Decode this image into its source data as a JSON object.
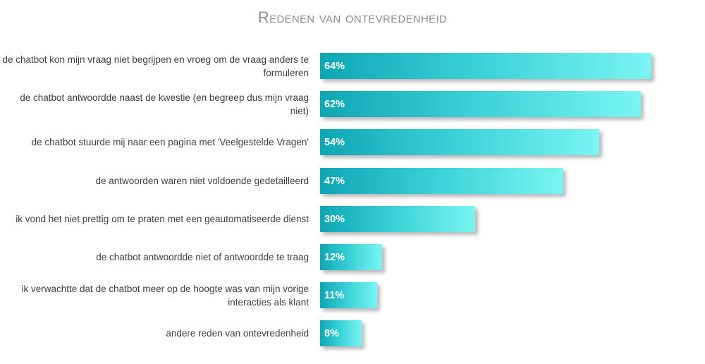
{
  "chart_data": {
    "type": "bar",
    "orientation": "horizontal",
    "title": "Redenen van ontevredenheid",
    "categories": [
      "de chatbot kon mijn vraag niet begrijpen en vroeg om de vraag anders te formuleren",
      "de chatbot antwoordde naast de kwestie (en begreep dus mijn vraag niet)",
      "de chatbot stuurde mij naar een pagina met 'Veelgestelde Vragen'",
      "de antwoorden waren niet voldoende gedetailleerd",
      "ik vond het niet prettig om te praten met een geautomatiseerde dienst",
      "de chatbot antwoordde niet of antwoordde te traag",
      "ik verwachtte dat de chatbot meer op de hoogte was van mijn vorige interacties als klant",
      "andere reden van ontevredenheid"
    ],
    "values": [
      64,
      62,
      54,
      47,
      30,
      12,
      11,
      8
    ],
    "data_labels": [
      "64%",
      "62%",
      "54%",
      "47%",
      "30%",
      "12%",
      "11%",
      "8%"
    ],
    "unit": "%",
    "xlabel": "",
    "ylabel": "",
    "grid": false,
    "legend": "none",
    "bar_color_start": "#0fa6b4",
    "bar_color_end": "#7af5f2"
  }
}
